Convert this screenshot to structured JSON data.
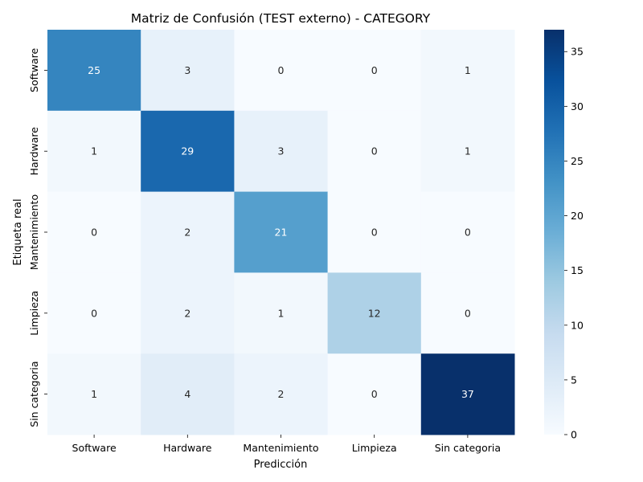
{
  "chart_data": {
    "type": "heatmap",
    "title": "Matriz de Confusión (TEST externo) - CATEGORY",
    "xlabel": "Predicción",
    "ylabel": "Etiqueta real",
    "x_categories": [
      "Software",
      "Hardware",
      "Mantenimiento",
      "Limpieza",
      "Sin categoria"
    ],
    "y_categories": [
      "Software",
      "Hardware",
      "Mantenimiento",
      "Limpieza",
      "Sin categoria"
    ],
    "matrix": [
      [
        25,
        3,
        0,
        0,
        1
      ],
      [
        1,
        29,
        3,
        0,
        1
      ],
      [
        0,
        2,
        21,
        0,
        0
      ],
      [
        0,
        2,
        1,
        12,
        0
      ],
      [
        1,
        4,
        2,
        0,
        37
      ]
    ],
    "colormap": "Blues",
    "vmin": 0,
    "vmax": 37,
    "colorbar_ticks": [
      0,
      5,
      10,
      15,
      20,
      25,
      30,
      35
    ]
  }
}
